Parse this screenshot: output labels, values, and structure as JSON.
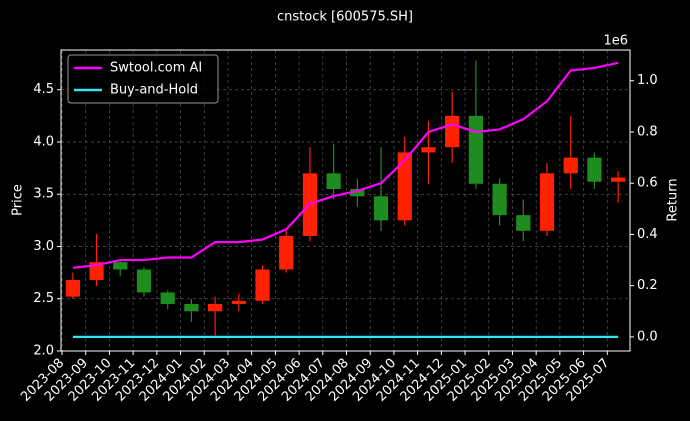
{
  "chart_data": {
    "type": "candlestick",
    "title": "cnstock [600575.SH]",
    "y_label": "Price",
    "y2_label": "Return",
    "y2_offset_label": "1e6",
    "categories": [
      "2023-08",
      "2023-09",
      "2023-10",
      "2023-11",
      "2023-12",
      "2024-01",
      "2024-02",
      "2024-03",
      "2024-04",
      "2024-05",
      "2024-06",
      "2024-07",
      "2024-08",
      "2024-09",
      "2024-10",
      "2024-11",
      "2024-12",
      "2025-01",
      "2025-02",
      "2025-03",
      "2025-04",
      "2025-05",
      "2025-06",
      "2025-07"
    ],
    "open": [
      2.52,
      2.68,
      2.85,
      2.78,
      2.56,
      2.45,
      2.38,
      2.45,
      2.48,
      2.78,
      3.1,
      3.7,
      3.55,
      3.48,
      3.25,
      3.9,
      3.95,
      4.25,
      3.6,
      3.3,
      3.15,
      3.7,
      3.85,
      3.62
    ],
    "high": [
      2.75,
      3.12,
      2.88,
      2.8,
      2.58,
      2.5,
      2.52,
      2.55,
      2.82,
      3.15,
      3.95,
      3.98,
      3.65,
      3.95,
      4.05,
      4.2,
      4.48,
      4.78,
      3.65,
      3.45,
      3.8,
      4.25,
      3.9,
      3.72
    ],
    "low": [
      2.5,
      2.62,
      2.72,
      2.52,
      2.4,
      2.28,
      2.15,
      2.38,
      2.45,
      2.75,
      3.05,
      3.45,
      3.38,
      3.15,
      3.2,
      3.6,
      3.8,
      3.55,
      3.2,
      3.05,
      3.1,
      3.55,
      3.55,
      3.42
    ],
    "close": [
      2.68,
      2.85,
      2.78,
      2.56,
      2.45,
      2.38,
      2.45,
      2.48,
      2.78,
      3.1,
      3.7,
      3.55,
      3.48,
      3.25,
      3.9,
      3.95,
      4.25,
      3.6,
      3.3,
      3.15,
      3.7,
      3.85,
      3.62,
      3.66
    ],
    "up_color": "#ff2200",
    "down_color": "#1e8c1e",
    "series": [
      {
        "name": "Swtool.com AI",
        "color": "#ff00ff",
        "axis": "y2",
        "values": [
          0.27,
          0.28,
          0.3,
          0.3,
          0.31,
          0.31,
          0.37,
          0.37,
          0.38,
          0.42,
          0.52,
          0.55,
          0.57,
          0.6,
          0.69,
          0.8,
          0.83,
          0.8,
          0.81,
          0.85,
          0.92,
          1.04,
          1.05,
          1.07
        ]
      },
      {
        "name": "Buy-and-Hold",
        "color": "#33e6ee",
        "axis": "y2",
        "values": [
          0,
          0,
          0,
          0,
          0,
          0,
          0,
          0,
          0,
          0,
          0,
          0,
          0,
          0,
          0,
          0,
          0,
          0,
          0,
          0,
          0,
          0,
          0,
          0
        ]
      }
    ],
    "ylim": [
      2.0,
      4.88
    ],
    "yticks": [
      {
        "value": 2,
        "label": "2.0"
      },
      2.5,
      {
        "value": 3,
        "label": "3.0"
      },
      3.5,
      {
        "value": 4,
        "label": "4.0"
      },
      4.5
    ],
    "y2lim": [
      -0.055,
      1.12
    ],
    "y2ticks": [
      {
        "value": 0,
        "label": "0.0"
      },
      0.2,
      0.4,
      0.6,
      0.8,
      {
        "value": 1,
        "label": "1.0"
      }
    ],
    "grid": true,
    "legend": "upper left"
  }
}
